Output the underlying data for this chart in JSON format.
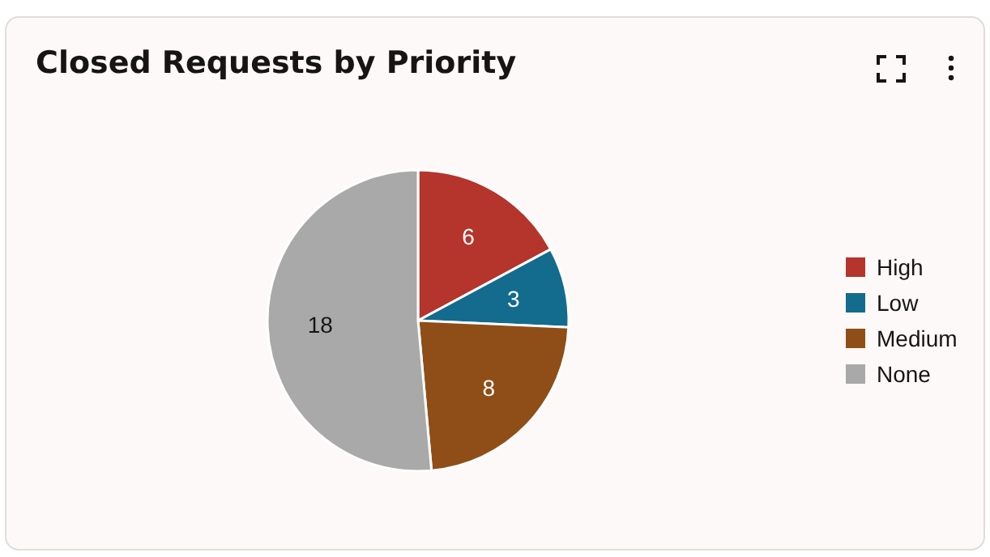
{
  "chart_data": {
    "type": "pie",
    "title": "Closed Requests by Priority",
    "categories": [
      "High",
      "Low",
      "Medium",
      "None"
    ],
    "values": [
      6,
      3,
      8,
      18
    ],
    "colors": [
      "#b5342b",
      "#136b8e",
      "#8f4e17",
      "#a9a9a9"
    ],
    "data_labels": true,
    "legend": "right"
  }
}
